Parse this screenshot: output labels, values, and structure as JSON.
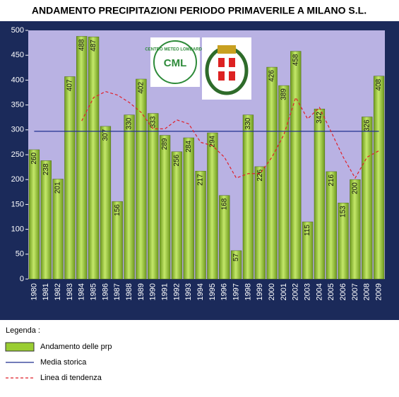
{
  "chart_data": {
    "type": "bar",
    "title": "ANDAMENTO PRECIPITAZIONI PERIODO PRIMAVERILE A MILANO S.L.",
    "categories": [
      "1980",
      "1981",
      "1982",
      "1983",
      "1984",
      "1985",
      "1986",
      "1987",
      "1988",
      "1989",
      "1990",
      "1991",
      "1992",
      "1993",
      "1994",
      "1995",
      "1996",
      "1997",
      "1998",
      "1999",
      "2000",
      "2001",
      "2002",
      "2003",
      "2004",
      "2005",
      "2006",
      "2007",
      "2008",
      "2009"
    ],
    "series": [
      {
        "name": "Andamento delle prp",
        "color": "#9acd32",
        "type": "bar",
        "values": [
          260,
          238,
          201,
          407,
          488,
          487,
          307,
          156,
          330,
          402,
          333,
          289,
          256,
          284,
          217,
          294,
          168,
          57,
          330,
          226,
          426,
          389,
          458,
          115,
          342,
          216,
          153,
          200,
          326,
          408
        ]
      },
      {
        "name": "Media storica",
        "color": "#1f2f8f",
        "type": "line",
        "values": [
          297,
          297,
          297,
          297,
          297,
          297,
          297,
          297,
          297,
          297,
          297,
          297,
          297,
          297,
          297,
          297,
          297,
          297,
          297,
          297,
          297,
          297,
          297,
          297,
          297,
          297,
          297,
          297,
          297,
          297
        ]
      },
      {
        "name": "Linea di tendenza",
        "color": "#e0202a",
        "type": "line",
        "dashed": true,
        "values": [
          null,
          null,
          null,
          null,
          318,
          365,
          377,
          370,
          355,
          335,
          302,
          302,
          320,
          312,
          275,
          268,
          245,
          203,
          212,
          212,
          245,
          290,
          365,
          322,
          345,
          295,
          245,
          203,
          245,
          258
        ]
      }
    ],
    "ylim": [
      0,
      500
    ],
    "yticks": [
      0,
      50,
      100,
      150,
      200,
      250,
      300,
      350,
      400,
      450,
      500
    ],
    "legend_title": "Legenda :",
    "logo_text": "CENTRO METEO LOMBARDO",
    "logo_abbr": "CML"
  }
}
